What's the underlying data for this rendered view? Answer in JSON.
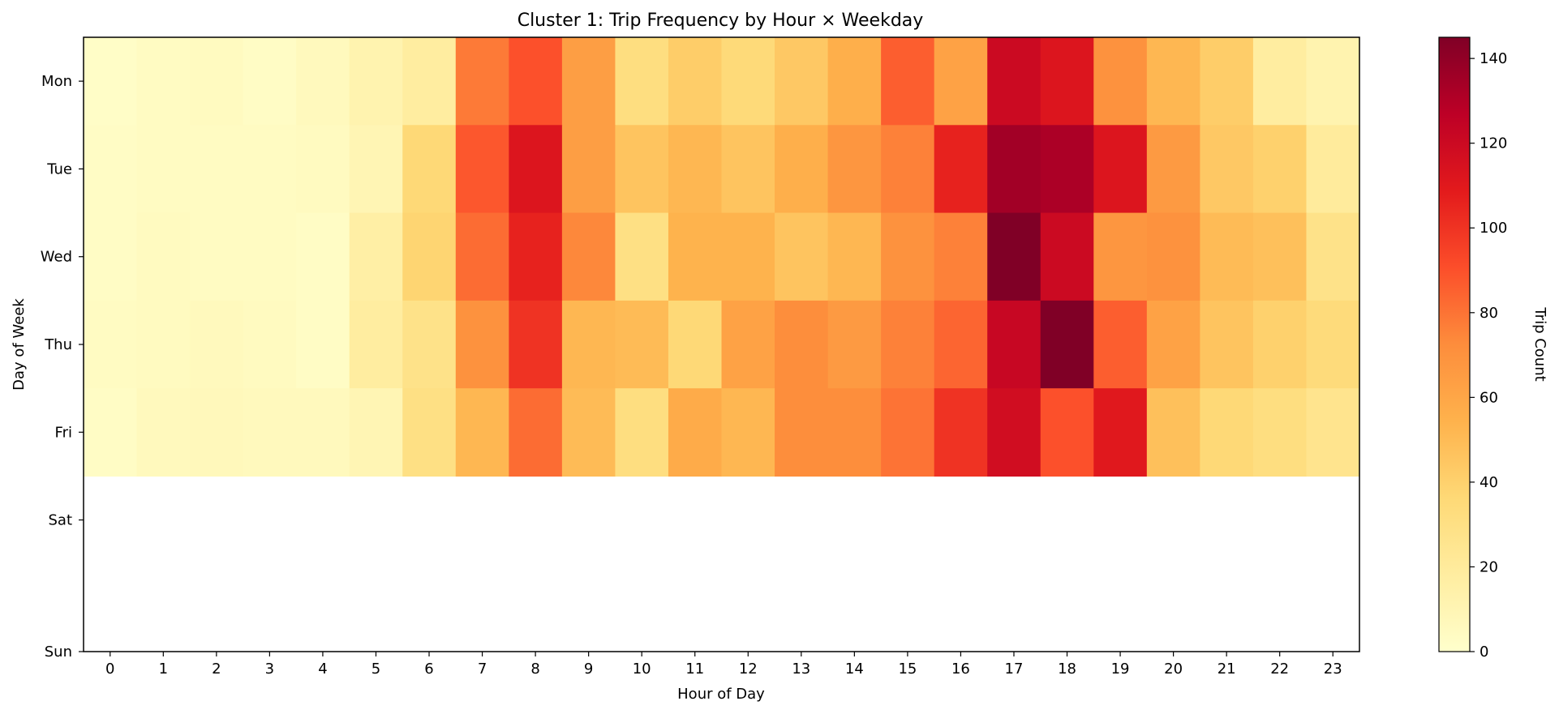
{
  "chart_data": {
    "type": "heatmap",
    "title": "Cluster 1: Trip Frequency by Hour × Weekday",
    "xlabel": "Hour of Day",
    "ylabel": "Day of Week",
    "x_categories": [
      "0",
      "1",
      "2",
      "3",
      "4",
      "5",
      "6",
      "7",
      "8",
      "9",
      "10",
      "11",
      "12",
      "13",
      "14",
      "15",
      "16",
      "17",
      "18",
      "19",
      "20",
      "21",
      "22",
      "23"
    ],
    "y_categories": [
      "Mon",
      "Tue",
      "Wed",
      "Thu",
      "Fri",
      "Sat",
      "Sun"
    ],
    "values": [
      [
        2,
        4,
        5,
        3,
        6,
        12,
        18,
        78,
        90,
        64,
        32,
        42,
        35,
        44,
        56,
        86,
        62,
        120,
        112,
        70,
        52,
        42,
        18,
        12
      ],
      [
        3,
        4,
        4,
        4,
        5,
        10,
        36,
        88,
        112,
        64,
        46,
        52,
        46,
        56,
        68,
        76,
        106,
        135,
        132,
        112,
        66,
        44,
        40,
        20
      ],
      [
        3,
        5,
        4,
        4,
        3,
        16,
        38,
        82,
        106,
        74,
        30,
        54,
        54,
        46,
        52,
        70,
        76,
        145,
        120,
        68,
        70,
        50,
        48,
        28
      ],
      [
        4,
        5,
        6,
        5,
        3,
        18,
        28,
        70,
        100,
        52,
        50,
        36,
        62,
        72,
        66,
        76,
        84,
        122,
        145,
        86,
        62,
        46,
        40,
        34
      ],
      [
        3,
        6,
        7,
        6,
        6,
        10,
        30,
        52,
        82,
        50,
        32,
        58,
        52,
        72,
        72,
        80,
        100,
        118,
        90,
        110,
        48,
        36,
        32,
        26
      ],
      [],
      []
    ],
    "colorbar": {
      "label": "Trip Count",
      "min": 0,
      "max": 145,
      "ticks": [
        "0",
        "20",
        "40",
        "60",
        "80",
        "100",
        "120",
        "140"
      ],
      "colormap": "YlOrRd"
    }
  }
}
